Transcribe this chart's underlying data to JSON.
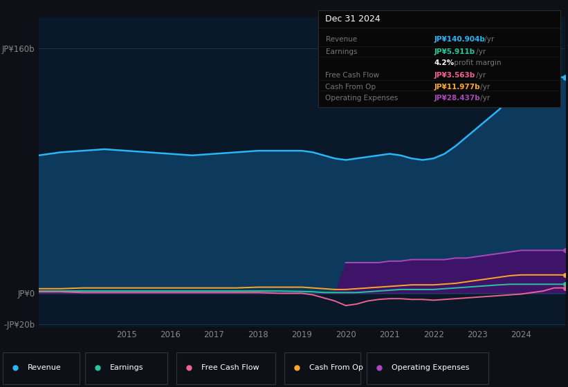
{
  "bg_color": "#0d1117",
  "plot_bg_color": "#0a1929",
  "years": [
    2013.0,
    2013.5,
    2014.0,
    2014.5,
    2015.0,
    2015.5,
    2016.0,
    2016.5,
    2017.0,
    2017.5,
    2018.0,
    2018.5,
    2019.0,
    2019.25,
    2019.5,
    2019.75,
    2020.0,
    2020.25,
    2020.5,
    2020.75,
    2021.0,
    2021.25,
    2021.5,
    2021.75,
    2022.0,
    2022.25,
    2022.5,
    2022.75,
    2023.0,
    2023.25,
    2023.5,
    2023.75,
    2024.0,
    2024.25,
    2024.5,
    2024.75,
    2025.0
  ],
  "revenue": [
    90,
    92,
    93,
    94,
    93,
    92,
    91,
    90,
    91,
    92,
    93,
    93,
    93,
    92,
    90,
    88,
    87,
    88,
    89,
    90,
    91,
    90,
    88,
    87,
    88,
    91,
    96,
    102,
    108,
    114,
    120,
    128,
    133,
    136,
    139,
    141,
    141
  ],
  "earnings": [
    1.5,
    1.5,
    1.5,
    1.5,
    1.5,
    1.5,
    1.5,
    1.5,
    1.5,
    1.5,
    1.5,
    1.5,
    1.2,
    1.0,
    0.5,
    0.5,
    0.5,
    0.5,
    1.0,
    1.5,
    2.0,
    2.5,
    2.5,
    2.5,
    2.5,
    3.0,
    3.5,
    4.0,
    4.5,
    5.0,
    5.5,
    5.9,
    5.9,
    5.9,
    5.9,
    5.9,
    5.9
  ],
  "free_cash_flow": [
    1.0,
    1.0,
    0.5,
    0.5,
    0.5,
    0.5,
    0.5,
    0.5,
    0.5,
    0.5,
    0.5,
    0.0,
    0.0,
    -1.0,
    -3.0,
    -5.0,
    -8.0,
    -7.0,
    -5.0,
    -4.0,
    -3.5,
    -3.5,
    -4.0,
    -4.0,
    -4.5,
    -4.0,
    -3.5,
    -3.0,
    -2.5,
    -2.0,
    -1.5,
    -1.0,
    -0.5,
    0.5,
    1.5,
    3.5,
    3.5
  ],
  "cash_from_op": [
    3.0,
    3.0,
    3.5,
    3.5,
    3.5,
    3.5,
    3.5,
    3.5,
    3.5,
    3.5,
    4.0,
    4.0,
    4.0,
    3.5,
    3.0,
    2.5,
    2.5,
    3.0,
    3.5,
    4.0,
    4.5,
    5.0,
    5.5,
    5.5,
    5.5,
    6.0,
    6.5,
    7.5,
    8.5,
    9.5,
    10.5,
    11.5,
    12.0,
    12.0,
    12.0,
    12.0,
    12.0
  ],
  "operating_expenses": [
    0,
    0,
    0,
    0,
    0,
    0,
    0,
    0,
    0,
    0,
    0,
    0,
    0,
    0,
    0,
    0,
    20,
    20,
    20,
    20,
    21,
    21,
    22,
    22,
    22,
    22,
    23,
    23,
    24,
    25,
    26,
    27,
    28,
    28,
    28,
    28,
    28
  ],
  "revenue_color": "#29b6f6",
  "earnings_color": "#26c6a0",
  "free_cash_flow_color": "#f06292",
  "cash_from_op_color": "#ffa726",
  "operating_expenses_color": "#ab47bc",
  "revenue_fill_color": "#0d3a5c",
  "operating_expenses_fill_color": "#3d1468",
  "ylim_min": -22,
  "ylim_max": 180,
  "yticks": [
    -20,
    0,
    160
  ],
  "ytick_labels": [
    "-JP¥20b",
    "JP¥0",
    "JP¥160b"
  ],
  "xticks": [
    2015,
    2016,
    2017,
    2018,
    2019,
    2020,
    2021,
    2022,
    2023,
    2024
  ],
  "grid_color": "#1a3a50",
  "legend_items": [
    {
      "label": "Revenue",
      "color": "#29b6f6"
    },
    {
      "label": "Earnings",
      "color": "#26c6a0"
    },
    {
      "label": "Free Cash Flow",
      "color": "#f06292"
    },
    {
      "label": "Cash From Op",
      "color": "#ffa726"
    },
    {
      "label": "Operating Expenses",
      "color": "#ab47bc"
    }
  ],
  "info_box": {
    "title": "Dec 31 2024",
    "items": [
      {
        "label": "Revenue",
        "value": "JP¥140.904b",
        "suffix": " /yr",
        "value_color": "#29b6f6"
      },
      {
        "label": "Earnings",
        "value": "JP¥5.911b",
        "suffix": " /yr",
        "value_color": "#26c6a0"
      },
      {
        "label": "",
        "value": "4.2%",
        "suffix": " profit margin",
        "value_color": "#ffffff"
      },
      {
        "label": "Free Cash Flow",
        "value": "JP¥3.563b",
        "suffix": " /yr",
        "value_color": "#f06292"
      },
      {
        "label": "Cash From Op",
        "value": "JP¥11.977b",
        "suffix": " /yr",
        "value_color": "#ffa726"
      },
      {
        "label": "Operating Expenses",
        "value": "JP¥28.437b",
        "suffix": " /yr",
        "value_color": "#ab47bc"
      }
    ]
  }
}
